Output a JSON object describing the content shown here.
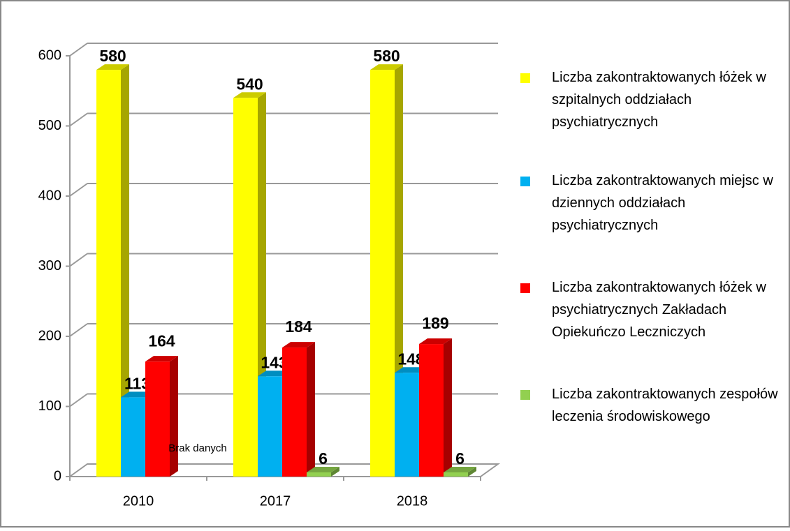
{
  "chart_data": {
    "type": "bar3d",
    "categories": [
      "2010",
      "2017",
      "2018"
    ],
    "series": [
      {
        "name": "Liczba zakontraktowanych łóżek w szpitalnych oddziałach psychiatrycznych",
        "color": "#ffff00",
        "values": [
          580,
          540,
          580
        ]
      },
      {
        "name": "Liczba zakontraktowanych miejsc w dziennych oddziałach psychiatrycznych",
        "color": "#00b0f0",
        "values": [
          113,
          143,
          148
        ]
      },
      {
        "name": "Liczba zakontraktowanych łóżek w psychiatrycznych Zakładach Opiekuńczo Leczniczych",
        "color": "#ff0000",
        "values": [
          164,
          184,
          189
        ]
      },
      {
        "name": "Liczba zakontraktowanych zespołów leczenia środowiskowego",
        "color": "#92d050",
        "values": [
          null,
          6,
          6
        ],
        "value_labels": [
          "Brak danych",
          "6",
          "6"
        ]
      }
    ],
    "ylim": [
      0,
      600
    ],
    "yticks": [
      0,
      100,
      200,
      300,
      400,
      500,
      600
    ],
    "grid": true,
    "legend": "right"
  }
}
